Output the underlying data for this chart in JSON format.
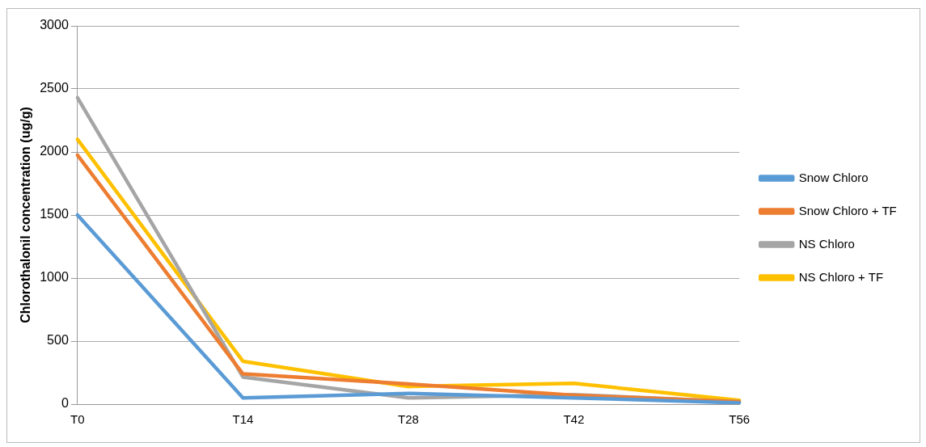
{
  "chart_data": {
    "type": "line",
    "ylabel": "Chlorothalonil concentration (ug/g)",
    "categories": [
      "T0",
      "T14",
      "T28",
      "T42",
      "T56"
    ],
    "series": [
      {
        "name": "Snow Chloro",
        "color": "#5b9bd5",
        "values": [
          1500,
          50,
          85,
          50,
          10
        ]
      },
      {
        "name": "Snow Chloro + TF",
        "color": "#ed7d31",
        "values": [
          1975,
          240,
          160,
          70,
          20
        ]
      },
      {
        "name": "NS Chloro",
        "color": "#a5a5a5",
        "values": [
          2430,
          215,
          50,
          75,
          20
        ]
      },
      {
        "name": "NS Chloro + TF",
        "color": "#ffc000",
        "values": [
          2100,
          340,
          140,
          165,
          30
        ]
      }
    ],
    "ylim": [
      0,
      3000
    ],
    "yticks": [
      0,
      500,
      1000,
      1500,
      2000,
      2500,
      3000
    ],
    "grid": "y",
    "legend": "right",
    "marker": "none",
    "line_style": "solid"
  }
}
